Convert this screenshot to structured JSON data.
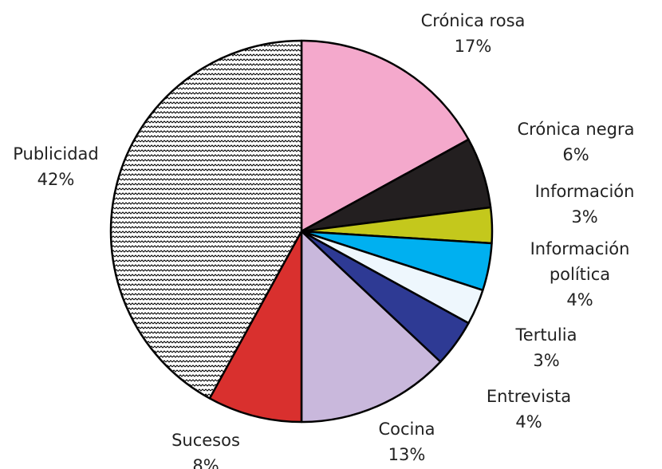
{
  "chart_data": {
    "type": "pie",
    "categories": [
      "Crónica rosa",
      "Crónica negra",
      "Información",
      "Información política",
      "Tertulia",
      "Entrevista",
      "Cocina",
      "Sucesos",
      "Publicidad"
    ],
    "values": [
      17,
      6,
      3,
      4,
      3,
      4,
      13,
      8,
      42
    ],
    "value_labels": [
      "17%",
      "6%",
      "3%",
      "4%",
      "3%",
      "4%",
      "13%",
      "8%",
      "42%"
    ],
    "colors": [
      "#f4a9cc",
      "#231f20",
      "#c4c81c",
      "#00b0f0",
      "#eef7fd",
      "#2e3a94",
      "#c9b8dc",
      "#d9302e",
      "url(#zigzag)"
    ]
  }
}
